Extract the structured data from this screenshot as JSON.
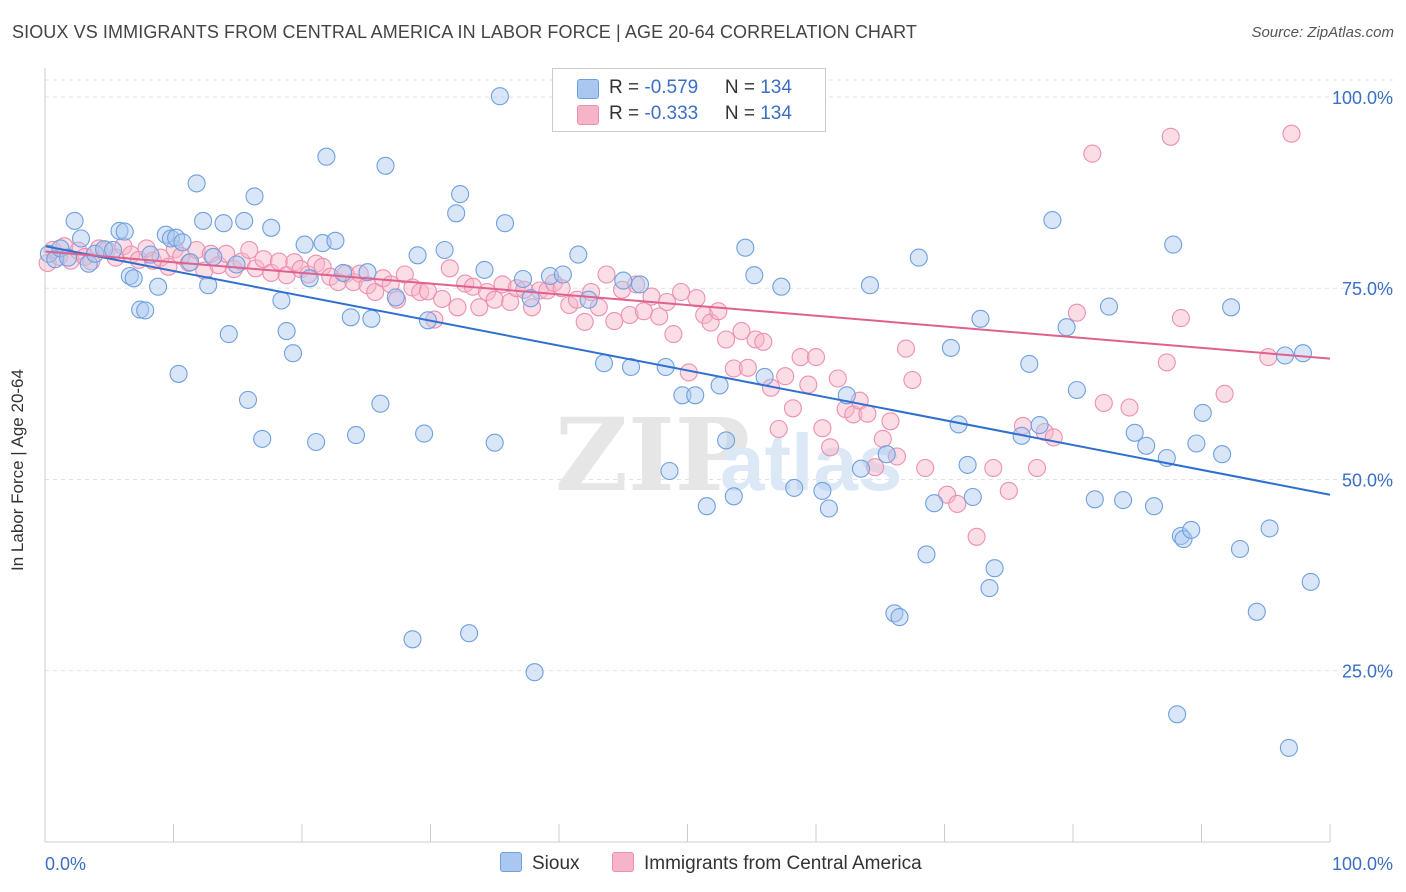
{
  "title": "SIOUX VS IMMIGRANTS FROM CENTRAL AMERICA IN LABOR FORCE | AGE 20-64 CORRELATION CHART",
  "source": "Source: ZipAtlas.com",
  "watermark": "ZIPatlas",
  "legend": {
    "rows": [
      {
        "r_label": "R = ",
        "r_value": "-0.579",
        "n_label": "N = ",
        "n_value": "134",
        "color": "#a9c7ef"
      },
      {
        "r_label": "R = ",
        "r_value": "-0.333",
        "n_label": "N = ",
        "n_value": "134",
        "color": "#f6b4c8"
      }
    ]
  },
  "chart_data": {
    "type": "scatter",
    "ylabel": "In Labor Force | Age 20-64",
    "xlim": [
      0,
      100
    ],
    "ylim": [
      0,
      105
    ],
    "x_tick_labels": [
      "0.0%",
      "100.0%"
    ],
    "y_ticks": [
      25,
      50,
      75,
      100
    ],
    "y_tick_labels": [
      "25.0%",
      "50.0%",
      "75.0%",
      "100.0%"
    ],
    "grid": true,
    "legend_placement": "bottom-center",
    "series": [
      {
        "name": "Sioux",
        "color": "#6fa0e0",
        "fill": "#a9c7ef",
        "line_color": "#2f6fd0",
        "trend": [
          [
            0,
            80.5
          ],
          [
            100,
            48.0
          ]
        ],
        "points": [
          [
            0.3,
            79.5
          ],
          [
            0.8,
            78.8
          ],
          [
            1.2,
            80.2
          ],
          [
            1.8,
            79.0
          ],
          [
            2.3,
            83.8
          ],
          [
            2.8,
            81.5
          ],
          [
            3.4,
            78.2
          ],
          [
            3.9,
            79.5
          ],
          [
            4.6,
            80.1
          ],
          [
            5.3,
            80.0
          ],
          [
            5.8,
            82.5
          ],
          [
            6.2,
            82.4
          ],
          [
            6.6,
            76.6
          ],
          [
            6.9,
            76.3
          ],
          [
            7.4,
            72.2
          ],
          [
            7.8,
            72.1
          ],
          [
            8.2,
            79.4
          ],
          [
            8.8,
            75.2
          ],
          [
            9.4,
            82.0
          ],
          [
            9.8,
            81.5
          ],
          [
            10.2,
            81.6
          ],
          [
            10.4,
            63.8
          ],
          [
            10.7,
            81.0
          ],
          [
            11.3,
            78.4
          ],
          [
            11.8,
            88.7
          ],
          [
            12.3,
            83.8
          ],
          [
            12.7,
            75.4
          ],
          [
            13.1,
            79.1
          ],
          [
            13.9,
            83.5
          ],
          [
            14.3,
            69.0
          ],
          [
            14.9,
            78.1
          ],
          [
            15.5,
            83.8
          ],
          [
            15.8,
            60.4
          ],
          [
            16.3,
            87.0
          ],
          [
            16.9,
            55.3
          ],
          [
            17.6,
            82.9
          ],
          [
            18.4,
            73.4
          ],
          [
            18.8,
            69.4
          ],
          [
            19.3,
            66.5
          ],
          [
            20.2,
            80.7
          ],
          [
            20.6,
            76.3
          ],
          [
            21.1,
            54.9
          ],
          [
            21.6,
            80.9
          ],
          [
            21.9,
            92.2
          ],
          [
            22.6,
            81.2
          ],
          [
            23.2,
            77.0
          ],
          [
            23.8,
            71.2
          ],
          [
            24.2,
            55.8
          ],
          [
            25.1,
            77.1
          ],
          [
            25.4,
            71.0
          ],
          [
            26.1,
            59.9
          ],
          [
            26.5,
            91.0
          ],
          [
            27.3,
            73.8
          ],
          [
            28.6,
            29.1
          ],
          [
            29.0,
            79.3
          ],
          [
            29.5,
            56.0
          ],
          [
            29.8,
            70.8
          ],
          [
            31.1,
            80.0
          ],
          [
            32.0,
            84.8
          ],
          [
            32.3,
            87.3
          ],
          [
            33.0,
            29.9
          ],
          [
            34.2,
            77.4
          ],
          [
            35.4,
            100.1
          ],
          [
            35.0,
            54.8
          ],
          [
            35.8,
            83.5
          ],
          [
            37.2,
            76.2
          ],
          [
            37.8,
            73.7
          ],
          [
            38.1,
            24.8
          ],
          [
            39.3,
            76.6
          ],
          [
            40.3,
            76.8
          ],
          [
            41.5,
            79.4
          ],
          [
            42.3,
            73.5
          ],
          [
            43.5,
            65.2
          ],
          [
            45.0,
            76.0
          ],
          [
            45.6,
            64.7
          ],
          [
            46.3,
            75.5
          ],
          [
            48.3,
            64.7
          ],
          [
            48.6,
            51.1
          ],
          [
            49.6,
            61.0
          ],
          [
            50.6,
            61.0
          ],
          [
            51.5,
            46.5
          ],
          [
            52.5,
            62.3
          ],
          [
            53.0,
            55.1
          ],
          [
            53.6,
            47.8
          ],
          [
            54.5,
            80.3
          ],
          [
            55.2,
            76.7
          ],
          [
            56.0,
            63.4
          ],
          [
            57.3,
            75.2
          ],
          [
            58.3,
            48.9
          ],
          [
            60.5,
            48.5
          ],
          [
            61.0,
            46.2
          ],
          [
            62.4,
            61.0
          ],
          [
            63.5,
            51.4
          ],
          [
            64.2,
            75.4
          ],
          [
            65.5,
            53.3
          ],
          [
            66.1,
            32.5
          ],
          [
            66.5,
            32.0
          ],
          [
            68.0,
            79.0
          ],
          [
            68.6,
            40.2
          ],
          [
            69.2,
            46.9
          ],
          [
            70.5,
            67.2
          ],
          [
            71.1,
            57.2
          ],
          [
            71.8,
            51.9
          ],
          [
            72.2,
            47.7
          ],
          [
            72.8,
            71.0
          ],
          [
            73.5,
            35.8
          ],
          [
            73.9,
            38.4
          ],
          [
            76.0,
            55.7
          ],
          [
            76.6,
            65.1
          ],
          [
            77.4,
            57.1
          ],
          [
            78.4,
            83.9
          ],
          [
            79.5,
            69.9
          ],
          [
            80.3,
            61.7
          ],
          [
            81.7,
            47.4
          ],
          [
            82.8,
            72.6
          ],
          [
            83.9,
            47.3
          ],
          [
            84.8,
            56.1
          ],
          [
            85.7,
            54.4
          ],
          [
            86.3,
            46.5
          ],
          [
            87.3,
            52.8
          ],
          [
            87.8,
            80.7
          ],
          [
            88.1,
            19.3
          ],
          [
            88.4,
            42.6
          ],
          [
            88.6,
            42.2
          ],
          [
            89.2,
            43.4
          ],
          [
            89.6,
            54.7
          ],
          [
            90.1,
            58.7
          ],
          [
            91.6,
            53.3
          ],
          [
            92.3,
            72.5
          ],
          [
            93.0,
            40.9
          ],
          [
            94.3,
            32.7
          ],
          [
            95.3,
            43.6
          ],
          [
            96.5,
            66.2
          ],
          [
            96.8,
            14.9
          ],
          [
            97.9,
            66.5
          ],
          [
            98.5,
            36.6
          ]
        ]
      },
      {
        "name": "Immigrants from Central America",
        "color": "#ee8fb0",
        "fill": "#f6b4c8",
        "line_color": "#e0608e",
        "trend": [
          [
            0,
            79.8
          ],
          [
            100,
            65.8
          ]
        ],
        "points": [
          [
            0.2,
            78.3
          ],
          [
            0.6,
            80.0
          ],
          [
            1.1,
            79.1
          ],
          [
            1.5,
            80.5
          ],
          [
            2.0,
            78.6
          ],
          [
            2.6,
            79.9
          ],
          [
            3.1,
            79.1
          ],
          [
            3.6,
            78.5
          ],
          [
            4.2,
            80.2
          ],
          [
            4.8,
            80.0
          ],
          [
            5.5,
            79.0
          ],
          [
            6.1,
            80.5
          ],
          [
            6.7,
            79.4
          ],
          [
            7.3,
            78.7
          ],
          [
            7.9,
            80.2
          ],
          [
            8.4,
            78.6
          ],
          [
            9.0,
            79.0
          ],
          [
            9.6,
            77.8
          ],
          [
            10.1,
            80.1
          ],
          [
            10.6,
            79.2
          ],
          [
            11.2,
            78.3
          ],
          [
            11.8,
            80.0
          ],
          [
            12.4,
            77.3
          ],
          [
            12.9,
            79.5
          ],
          [
            13.5,
            78.0
          ],
          [
            14.1,
            79.5
          ],
          [
            14.7,
            77.5
          ],
          [
            15.3,
            78.5
          ],
          [
            15.9,
            80.0
          ],
          [
            16.4,
            77.6
          ],
          [
            17.0,
            78.8
          ],
          [
            17.6,
            77.0
          ],
          [
            18.2,
            78.5
          ],
          [
            18.8,
            76.7
          ],
          [
            19.4,
            78.4
          ],
          [
            19.9,
            77.5
          ],
          [
            20.5,
            76.8
          ],
          [
            21.1,
            78.2
          ],
          [
            21.6,
            77.8
          ],
          [
            22.2,
            76.5
          ],
          [
            22.8,
            75.8
          ],
          [
            23.4,
            76.9
          ],
          [
            24.0,
            75.8
          ],
          [
            24.5,
            76.9
          ],
          [
            25.1,
            75.4
          ],
          [
            25.7,
            74.5
          ],
          [
            26.3,
            76.3
          ],
          [
            26.9,
            75.5
          ],
          [
            27.4,
            73.5
          ],
          [
            28.0,
            76.8
          ],
          [
            28.6,
            75.1
          ],
          [
            29.2,
            74.5
          ],
          [
            29.8,
            74.6
          ],
          [
            30.3,
            70.9
          ],
          [
            30.9,
            73.6
          ],
          [
            31.5,
            77.6
          ],
          [
            32.1,
            72.5
          ],
          [
            32.7,
            75.6
          ],
          [
            33.3,
            75.2
          ],
          [
            33.8,
            72.5
          ],
          [
            34.4,
            74.5
          ],
          [
            35.0,
            73.5
          ],
          [
            35.6,
            75.5
          ],
          [
            36.2,
            73.2
          ],
          [
            36.7,
            75.0
          ],
          [
            37.3,
            74.8
          ],
          [
            37.9,
            72.5
          ],
          [
            38.5,
            74.7
          ],
          [
            39.1,
            74.7
          ],
          [
            39.6,
            75.7
          ],
          [
            40.2,
            75.0
          ],
          [
            40.8,
            72.8
          ],
          [
            41.4,
            73.5
          ],
          [
            42.0,
            70.6
          ],
          [
            42.5,
            74.5
          ],
          [
            43.1,
            72.5
          ],
          [
            43.7,
            76.8
          ],
          [
            44.3,
            70.7
          ],
          [
            44.9,
            74.8
          ],
          [
            45.5,
            71.5
          ],
          [
            46.0,
            75.5
          ],
          [
            46.6,
            72.0
          ],
          [
            47.2,
            73.9
          ],
          [
            47.8,
            71.3
          ],
          [
            48.4,
            73.2
          ],
          [
            48.9,
            69.0
          ],
          [
            49.5,
            74.5
          ],
          [
            50.1,
            64.0
          ],
          [
            50.7,
            73.7
          ],
          [
            51.3,
            71.5
          ],
          [
            51.8,
            70.5
          ],
          [
            52.4,
            72.0
          ],
          [
            53.0,
            68.3
          ],
          [
            53.6,
            64.5
          ],
          [
            54.2,
            69.4
          ],
          [
            54.7,
            64.6
          ],
          [
            55.3,
            68.3
          ],
          [
            55.9,
            68.0
          ],
          [
            56.5,
            62.0
          ],
          [
            57.1,
            56.6
          ],
          [
            57.6,
            63.5
          ],
          [
            58.2,
            59.3
          ],
          [
            58.8,
            66.0
          ],
          [
            59.4,
            62.4
          ],
          [
            60.0,
            66.0
          ],
          [
            60.5,
            56.7
          ],
          [
            61.1,
            54.2
          ],
          [
            61.7,
            63.2
          ],
          [
            62.3,
            59.2
          ],
          [
            62.9,
            58.5
          ],
          [
            63.4,
            60.3
          ],
          [
            64.0,
            58.6
          ],
          [
            64.6,
            51.6
          ],
          [
            65.2,
            55.3
          ],
          [
            65.8,
            57.6
          ],
          [
            66.3,
            53.0
          ],
          [
            67.0,
            67.1
          ],
          [
            67.5,
            63.0
          ],
          [
            68.5,
            51.5
          ],
          [
            70.2,
            48.0
          ],
          [
            71.0,
            46.8
          ],
          [
            72.5,
            42.5
          ],
          [
            73.8,
            51.5
          ],
          [
            75.0,
            48.5
          ],
          [
            76.1,
            57.0
          ],
          [
            77.2,
            51.5
          ],
          [
            77.8,
            56.2
          ],
          [
            78.5,
            55.5
          ],
          [
            80.3,
            71.8
          ],
          [
            81.5,
            92.6
          ],
          [
            82.4,
            60.0
          ],
          [
            84.4,
            59.4
          ],
          [
            87.3,
            65.3
          ],
          [
            87.6,
            94.8
          ],
          [
            88.4,
            71.1
          ],
          [
            91.8,
            61.2
          ],
          [
            95.2,
            66.0
          ],
          [
            97.0,
            95.2
          ]
        ]
      }
    ]
  }
}
